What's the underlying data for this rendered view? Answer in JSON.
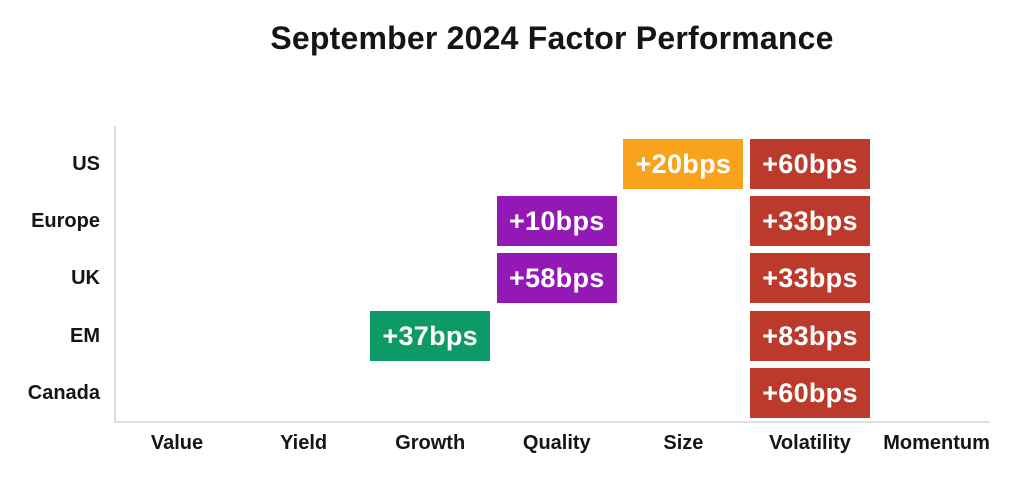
{
  "title": "September 2024 Factor Performance",
  "colors": {
    "orange": "#F9A21B",
    "red": "#BC3A2B",
    "purple": "#9318B5",
    "green": "#0D9A67",
    "axis_line": "#DEDEDE",
    "label_text": "#151515",
    "cell_text": "#FFFFFF",
    "background": "#FFFFFF"
  },
  "chart_data": {
    "type": "heatmap",
    "title": "September 2024 Factor Performance",
    "rows": [
      "US",
      "Europe",
      "UK",
      "EM",
      "Canada"
    ],
    "columns": [
      "Value",
      "Yield",
      "Growth",
      "Quality",
      "Size",
      "Volatility",
      "Momentum"
    ],
    "legend": "none",
    "grid": "off",
    "cells": [
      {
        "row": "US",
        "column": "Size",
        "label": "+20bps",
        "value_bps": 20,
        "color": "orange"
      },
      {
        "row": "US",
        "column": "Volatility",
        "label": "+60bps",
        "value_bps": 60,
        "color": "red"
      },
      {
        "row": "Europe",
        "column": "Quality",
        "label": "+10bps",
        "value_bps": 10,
        "color": "purple"
      },
      {
        "row": "Europe",
        "column": "Volatility",
        "label": "+33bps",
        "value_bps": 33,
        "color": "red"
      },
      {
        "row": "UK",
        "column": "Quality",
        "label": "+58bps",
        "value_bps": 58,
        "color": "purple"
      },
      {
        "row": "UK",
        "column": "Volatility",
        "label": "+33bps",
        "value_bps": 33,
        "color": "red"
      },
      {
        "row": "EM",
        "column": "Growth",
        "label": "+37bps",
        "value_bps": 37,
        "color": "green"
      },
      {
        "row": "EM",
        "column": "Volatility",
        "label": "+83bps",
        "value_bps": 83,
        "color": "red"
      },
      {
        "row": "Canada",
        "column": "Volatility",
        "label": "+60bps",
        "value_bps": 60,
        "color": "red"
      }
    ]
  }
}
